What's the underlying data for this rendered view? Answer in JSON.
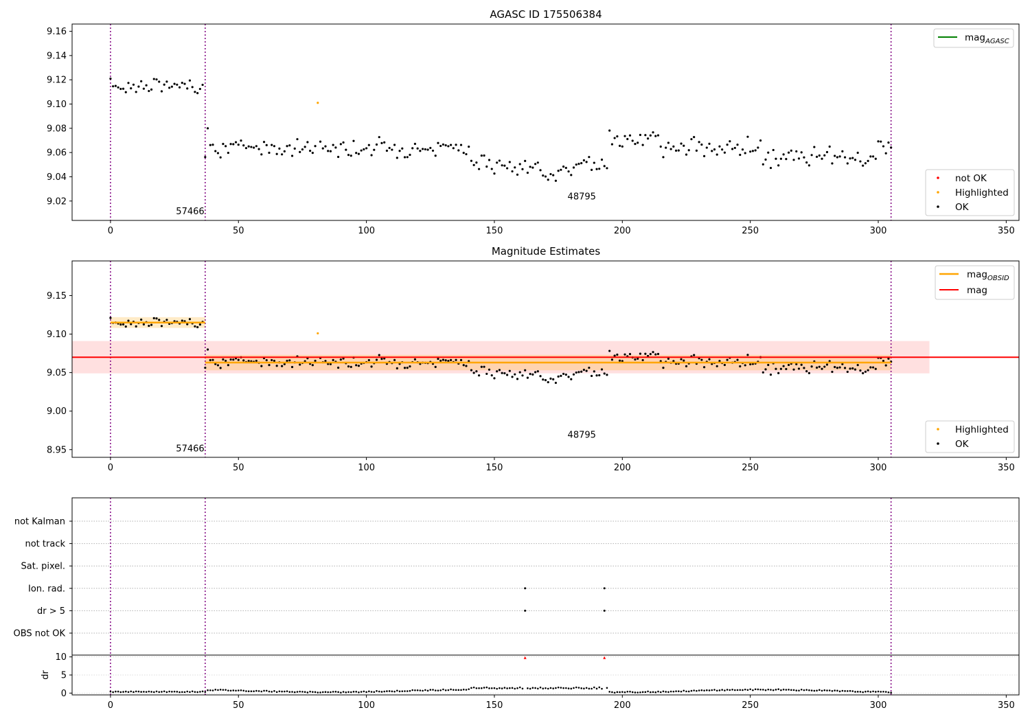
{
  "chart_data": [
    {
      "type": "scatter",
      "title": "AGASC ID 175506384",
      "xlim": [
        -15,
        355
      ],
      "ylim": [
        9.004,
        9.166
      ],
      "xticks": [
        0,
        50,
        100,
        150,
        200,
        250,
        300,
        350
      ],
      "yticks": [
        9.02,
        9.04,
        9.06,
        9.08,
        9.1,
        9.12,
        9.14,
        9.16
      ],
      "ytick_labels": [
        "9.02",
        "9.04",
        "9.06",
        "9.08",
        "9.10",
        "9.12",
        "9.14",
        "9.16"
      ],
      "obs_boundaries": [
        0,
        37,
        305
      ],
      "obs_labels": [
        {
          "x": 18,
          "y": 9.012,
          "text": "57466"
        },
        {
          "x": 171,
          "y": 9.024,
          "text": "48795"
        }
      ],
      "highlighted": [
        [
          81,
          9.101
        ]
      ],
      "legend_top": [
        {
          "label": "mag",
          "sub": "AGASC",
          "color": "#008000"
        }
      ],
      "legend_bottom": [
        {
          "label": "not OK",
          "color": "#ff0000"
        },
        {
          "label": "Highlighted",
          "color": "#ffa500"
        },
        {
          "label": "OK",
          "color": "#000000"
        }
      ]
    },
    {
      "type": "scatter",
      "title": "Magnitude Estimates",
      "xlim": [
        -15,
        355
      ],
      "ylim": [
        8.94,
        9.195
      ],
      "xticks": [
        0,
        50,
        100,
        150,
        200,
        250,
        300,
        350
      ],
      "yticks": [
        8.95,
        9.0,
        9.05,
        9.1,
        9.15
      ],
      "ytick_labels": [
        "8.95",
        "9.00",
        "9.05",
        "9.10",
        "9.15"
      ],
      "obs_boundaries": [
        0,
        37,
        305
      ],
      "obs_labels": [
        {
          "x": 18,
          "y": 8.952,
          "text": "57466"
        },
        {
          "x": 171,
          "y": 8.97,
          "text": "48795"
        }
      ],
      "mag": 9.07,
      "mag_band": [
        9.049,
        9.091
      ],
      "mag_band_x": [
        -15,
        320
      ],
      "obs_mags": [
        {
          "x": [
            0,
            37
          ],
          "mag": 9.115,
          "band": [
            9.108,
            9.122
          ]
        },
        {
          "x": [
            37,
            305
          ],
          "mag": 9.063,
          "band": [
            9.053,
            9.073
          ]
        }
      ],
      "highlighted": [
        [
          81,
          9.101
        ]
      ],
      "legend_top": [
        {
          "label": "mag",
          "sub": "OBSID",
          "color": "#ffa500"
        },
        {
          "label": "mag",
          "sub": "",
          "color": "#ff0000"
        }
      ],
      "legend_bottom": [
        {
          "label": "Highlighted",
          "color": "#ffa500"
        },
        {
          "label": "OK",
          "color": "#000000"
        }
      ]
    },
    {
      "type": "scatter",
      "title": "",
      "xlim": [
        -15,
        355
      ],
      "xticks": [
        0,
        50,
        100,
        150,
        200,
        250,
        300,
        350
      ],
      "obs_boundaries": [
        0,
        37,
        305
      ],
      "flag_rows": [
        "not Kalman",
        "not track",
        "Sat. pixel.",
        "Ion. rad.",
        "dr > 5",
        "OBS not OK"
      ],
      "flag_points": [
        {
          "row": "Ion. rad.",
          "x": 162
        },
        {
          "row": "Ion. rad.",
          "x": 193
        },
        {
          "row": "dr > 5",
          "x": 162
        },
        {
          "row": "dr > 5",
          "x": 193
        }
      ],
      "dr_ylabel": "dr",
      "dr_yticks": [
        0,
        5,
        10
      ],
      "dr_ylim": [
        -0.5,
        10.5
      ],
      "dr_clipped": [
        162,
        193
      ]
    }
  ]
}
